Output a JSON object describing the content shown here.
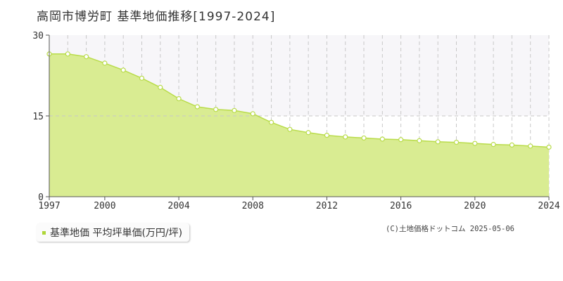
{
  "page": {
    "title": "高岡市博労町 基準地価推移[1997-2024]"
  },
  "legend": {
    "label": "基準地価 平均坪単価(万円/坪)"
  },
  "footer": {
    "copyright": "(C)土地価格ドットコム 2025-05-06"
  },
  "colors": {
    "area_fill": "#d9ec92",
    "line": "#b9dc4a",
    "upper_band": "#f7f6f9",
    "grid": "#c8c8c8",
    "axis": "#555555"
  },
  "chart_data": {
    "type": "area",
    "title": "高岡市博労町 基準地価推移[1997-2024]",
    "x": [
      1997,
      1998,
      1999,
      2000,
      2001,
      2002,
      2003,
      2004,
      2005,
      2006,
      2007,
      2008,
      2009,
      2010,
      2011,
      2012,
      2013,
      2014,
      2015,
      2016,
      2017,
      2018,
      2019,
      2020,
      2021,
      2022,
      2023,
      2024
    ],
    "series": [
      {
        "name": "基準地価 平均坪単価(万円/坪)",
        "values": [
          26.5,
          26.5,
          26.0,
          24.8,
          23.5,
          22.0,
          20.3,
          18.2,
          16.7,
          16.2,
          16.0,
          15.4,
          13.8,
          12.5,
          11.9,
          11.4,
          11.1,
          10.9,
          10.7,
          10.6,
          10.4,
          10.2,
          10.1,
          9.9,
          9.7,
          9.6,
          9.4,
          9.2
        ]
      }
    ],
    "xticks": [
      1997,
      2000,
      2004,
      2008,
      2012,
      2016,
      2020,
      2024
    ],
    "yticks": [
      0,
      15,
      30
    ],
    "ylim": [
      0,
      30
    ],
    "xlim": [
      1997,
      2024
    ],
    "grid": true,
    "legend_position": "bottom-left"
  }
}
